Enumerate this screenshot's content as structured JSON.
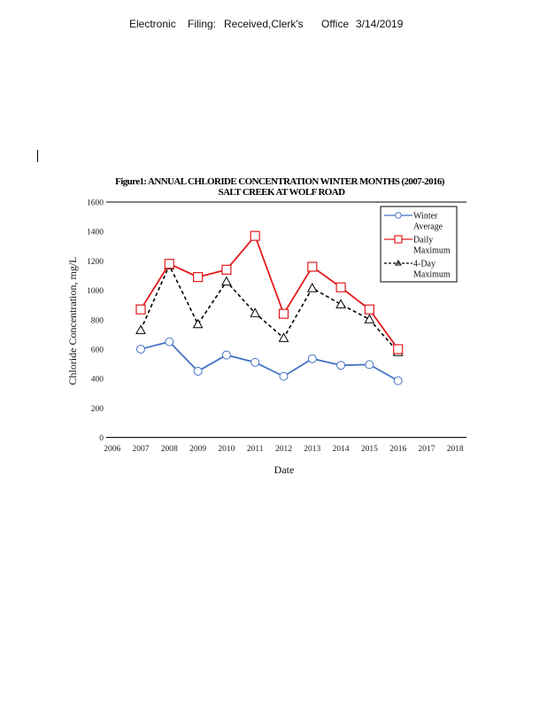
{
  "header": {
    "parts": [
      "Electronic",
      "Filing:",
      "Received,Clerk's",
      "Office",
      "3/14/2019"
    ]
  },
  "chart_data": {
    "type": "line",
    "title": "Figure1: ANNUAL CHLORIDE CONCENTRATION WINTER MONTHS (2007-2016)",
    "subtitle": "SALT CREEK AT WOLF ROAD",
    "xlabel": "Date",
    "ylabel": "Chloride Concentration, mg/L",
    "xlim": [
      2006,
      2018
    ],
    "ylim": [
      0,
      1600
    ],
    "x_ticks": [
      "2006",
      "2007",
      "2008",
      "2009",
      "2010",
      "2011",
      "2012",
      "2013",
      "2014",
      "2015",
      "2016",
      "2017",
      "2018"
    ],
    "y_ticks": [
      "0",
      "200",
      "400",
      "600",
      "800",
      "1000",
      "1200",
      "1400",
      "1600"
    ],
    "grid": false,
    "legend_position": "top-right",
    "x": [
      2007,
      2008,
      2009,
      2010,
      2011,
      2012,
      2013,
      2014,
      2015,
      2016
    ],
    "series": [
      {
        "name": "Winter Average",
        "legend_lines": [
          "Winter",
          "Average"
        ],
        "color": "#4472c4",
        "marker": "circle",
        "dash": "solid",
        "values": [
          600,
          650,
          450,
          560,
          510,
          415,
          535,
          490,
          495,
          385
        ]
      },
      {
        "name": "Daily Maximum",
        "legend_lines": [
          "Daily",
          "Maximum"
        ],
        "color": "#e31a1c",
        "marker": "square",
        "dash": "solid",
        "values": [
          870,
          1180,
          1090,
          1140,
          1370,
          840,
          1160,
          1020,
          870,
          600
        ]
      },
      {
        "name": "4-Day Maximum",
        "legend_lines": [
          "4-Day",
          "Maximum"
        ],
        "color": "#000000",
        "marker": "triangle",
        "dash": "dashed",
        "values": [
          730,
          1170,
          770,
          1060,
          845,
          676,
          1015,
          905,
          803,
          580
        ]
      }
    ]
  }
}
